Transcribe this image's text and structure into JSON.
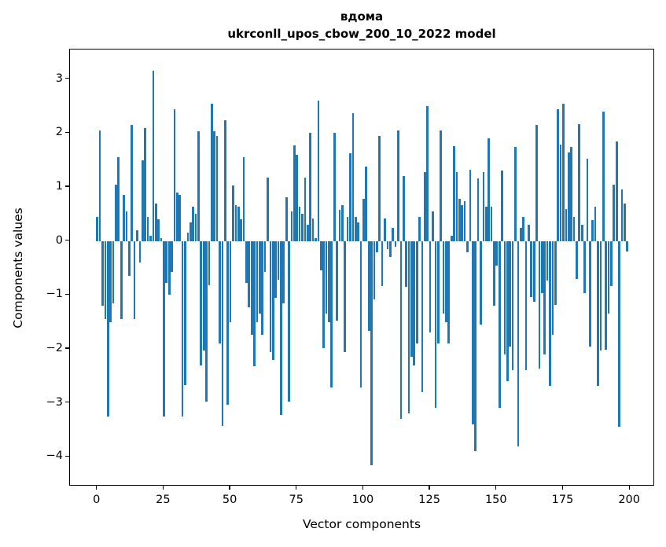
{
  "figure": {
    "title_line1": "вдома",
    "title_line2": "ukrconll_upos_cbow_200_10_2022 model"
  },
  "chart_data": {
    "type": "bar",
    "title": "вдома",
    "subtitle": "ukrconll_upos_cbow_200_10_2022 model",
    "xlabel": "Vector components",
    "ylabel": "Components values",
    "bar_color": "#1f77b4",
    "grid": false,
    "legend": "none",
    "n_components": 200,
    "xlim": [
      -10.25,
      209.4
    ],
    "ylim": [
      -4.55,
      3.55
    ],
    "x_ticks": [
      0,
      25,
      50,
      75,
      100,
      125,
      150,
      175,
      200
    ],
    "x_tick_labels": [
      "0",
      "25",
      "50",
      "75",
      "100",
      "125",
      "150",
      "175",
      "200"
    ],
    "y_ticks": [
      3,
      2,
      1,
      0,
      -1,
      -2,
      -3,
      -4
    ],
    "y_tick_labels": [
      "3",
      "2",
      "1",
      "0",
      "−1",
      "−2",
      "−3",
      "−4"
    ],
    "values": [
      0.45,
      2.05,
      -1.2,
      -1.45,
      -3.25,
      -1.5,
      -1.15,
      1.05,
      1.55,
      -1.45,
      0.85,
      0.55,
      -0.65,
      2.15,
      -1.45,
      0.2,
      -0.4,
      1.5,
      2.1,
      0.45,
      0.1,
      3.15,
      0.7,
      0.4,
      0.05,
      -3.25,
      -0.77,
      -1.0,
      -0.57,
      2.45,
      0.9,
      0.85,
      -3.25,
      -2.67,
      0.15,
      0.35,
      0.63,
      0.5,
      2.03,
      -2.3,
      -2.03,
      -2.98,
      -0.82,
      2.55,
      2.04,
      1.95,
      -1.9,
      -3.43,
      2.24,
      -3.04,
      -1.51,
      1.03,
      0.67,
      0.63,
      0.41,
      1.55,
      -0.77,
      -1.23,
      -1.74,
      -2.32,
      -1.5,
      -1.35,
      -1.74,
      -0.57,
      1.18,
      -2.06,
      -2.2,
      -1.05,
      -0.72,
      -3.22,
      -1.15,
      0.81,
      -2.98,
      0.55,
      1.77,
      1.6,
      0.64,
      0.5,
      1.18,
      0.3,
      2.0,
      0.42,
      0.05,
      2.6,
      -0.55,
      -1.98,
      -1.35,
      -1.5,
      -2.71,
      2.0,
      -1.47,
      0.58,
      0.67,
      -2.06,
      0.45,
      1.62,
      2.37,
      0.45,
      0.35,
      -2.71,
      0.78,
      1.38,
      -1.67,
      -4.15,
      -1.08,
      -0.21,
      1.95,
      -0.84,
      0.42,
      -0.15,
      -0.3,
      0.25,
      -0.1,
      2.05,
      -3.3,
      1.2,
      -0.85,
      -3.2,
      -2.15,
      -2.3,
      -1.9,
      0.45,
      -2.8,
      1.28,
      2.5,
      -1.7,
      0.55,
      -3.1,
      -1.9,
      2.05,
      -1.35,
      -1.5,
      -1.9,
      0.1,
      1.76,
      1.28,
      0.78,
      0.67,
      0.74,
      -0.21,
      1.32,
      -3.4,
      -3.9,
      1.16,
      -1.55,
      1.28,
      0.63,
      1.9,
      0.63,
      -1.2,
      -0.45,
      -3.1,
      1.3,
      -2.1,
      -2.6,
      -1.95,
      -2.4,
      1.75,
      -3.8,
      0.25,
      0.45,
      -2.4,
      0.3,
      -1.04,
      -1.13,
      2.15,
      -2.37,
      -0.96,
      -2.1,
      -0.74,
      -2.69,
      -1.74,
      -1.18,
      2.45,
      1.78,
      2.55,
      0.59,
      1.64,
      1.75,
      0.45,
      -0.7,
      2.16,
      0.3,
      -0.96,
      1.52,
      -1.96,
      0.39,
      0.63,
      -2.69,
      -2.03,
      2.4,
      -2.01,
      -1.35,
      -0.84,
      1.04,
      1.85,
      -3.45,
      0.95,
      0.7,
      -0.2
    ]
  }
}
